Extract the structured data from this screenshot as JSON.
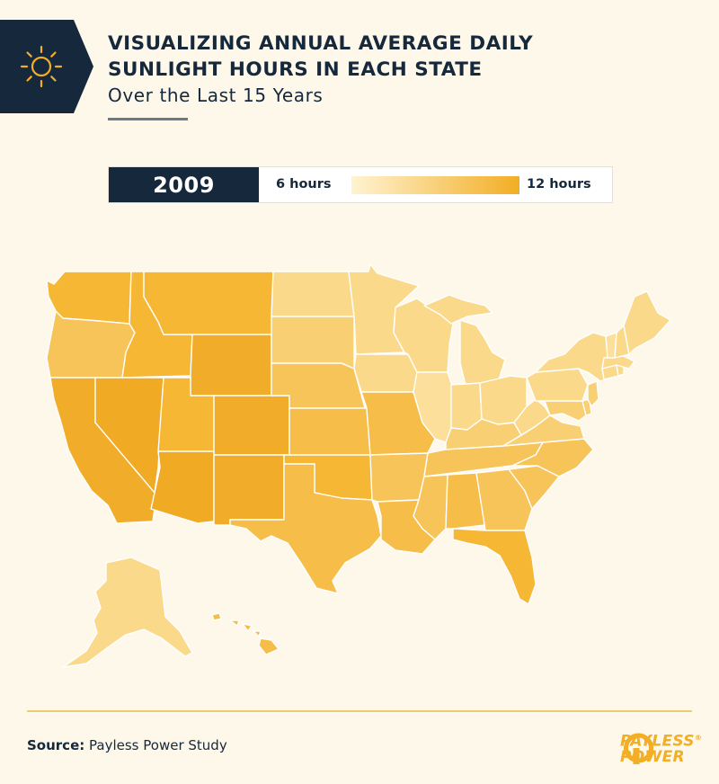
{
  "header": {
    "title_line1": "VISUALIZING ANNUAL AVERAGE DAILY",
    "title_line2": "SUNLIGHT HOURS IN EACH STATE",
    "subtitle": "Over the Last 15 Years"
  },
  "legend": {
    "year": "2009",
    "min_label": "6 hours",
    "max_label": "12 hours",
    "min_color": "#fff3d2",
    "max_color": "#f2ae24"
  },
  "footer": {
    "source_label": "Source:",
    "source_text": "Payless Power Study",
    "logo_line1": "PAYLESS",
    "logo_line2": "POWER",
    "logo_mark": "®"
  },
  "icons": {
    "header": "sun-icon",
    "logo": "payless-power-logo-icon"
  },
  "colors": {
    "background": "#fdf8ea",
    "navy": "#16283b",
    "accent": "#f2ae24"
  }
}
